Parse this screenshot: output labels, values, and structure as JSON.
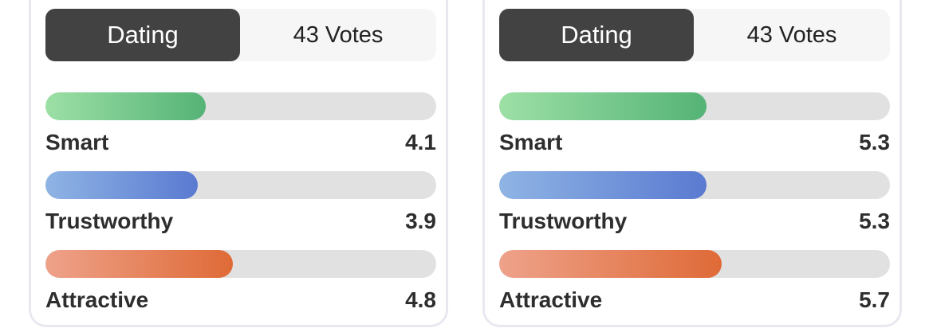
{
  "scale_max": 10,
  "colors": {
    "smart": [
      "#9de0a6",
      "#55b376"
    ],
    "trustworthy": [
      "#8fb4e4",
      "#5a7ad1"
    ],
    "attractive": [
      "#eea28a",
      "#df6a37"
    ]
  },
  "cards": [
    {
      "category": "Dating",
      "votes": "43 Votes",
      "metrics": [
        {
          "key": "smart",
          "label": "Smart",
          "value": "4.1"
        },
        {
          "key": "trustworthy",
          "label": "Trustworthy",
          "value": "3.9"
        },
        {
          "key": "attractive",
          "label": "Attractive",
          "value": "4.8"
        }
      ]
    },
    {
      "category": "Dating",
      "votes": "43 Votes",
      "metrics": [
        {
          "key": "smart",
          "label": "Smart",
          "value": "5.3"
        },
        {
          "key": "trustworthy",
          "label": "Trustworthy",
          "value": "5.3"
        },
        {
          "key": "attractive",
          "label": "Attractive",
          "value": "5.7"
        }
      ]
    }
  ]
}
